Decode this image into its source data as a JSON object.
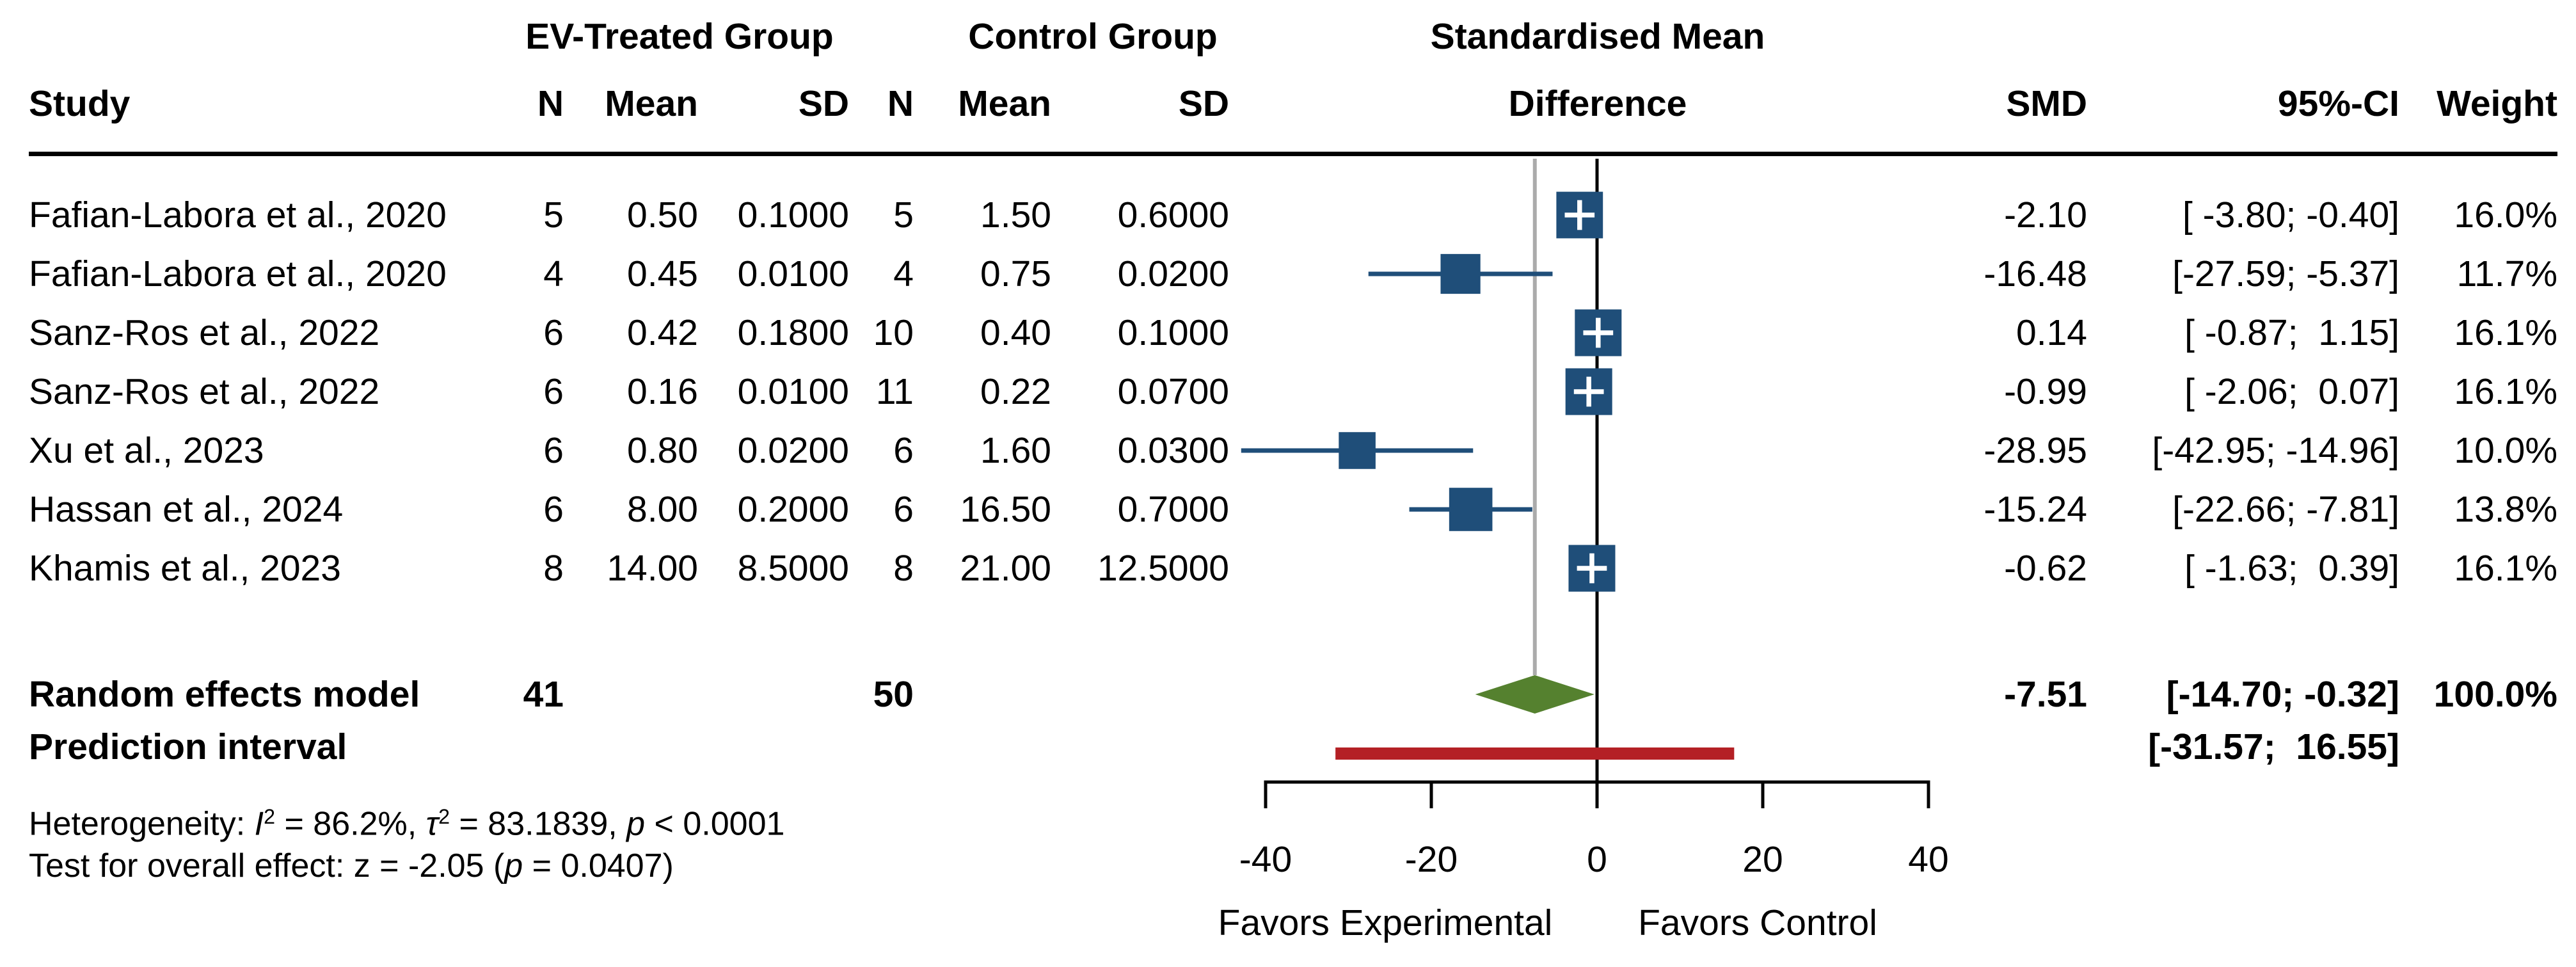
{
  "header": {
    "study": "Study",
    "group1_title": "EV-Treated Group",
    "group2_title": "Control Group",
    "effect_title_line1": "Standardised Mean",
    "effect_title_line2": "Difference",
    "n1": "N",
    "mean1": "Mean",
    "sd1": "SD",
    "n2": "N",
    "mean2": "Mean",
    "sd2": "SD",
    "smd": "SMD",
    "ci": "95%-CI",
    "weight": "Weight"
  },
  "chart_data": {
    "type": "forest",
    "x_axis": {
      "xlim": [
        -40,
        40
      ],
      "ticks": [
        -40,
        -20,
        0,
        20,
        40
      ],
      "tick_labels": [
        "-40",
        "-20",
        "0",
        "20",
        "40"
      ],
      "label_left": "Favors Experimental",
      "label_right": "Favors Control"
    },
    "studies": [
      {
        "name": "Fafian-Labora et al., 2020",
        "n_treated": "5",
        "mean_treated": "0.50",
        "sd_treated": "0.1000",
        "n_control": "5",
        "mean_control": "1.50",
        "sd_control": "0.6000",
        "smd": -2.1,
        "smd_text": "-2.10",
        "ci_low": -3.8,
        "ci_high": -0.4,
        "ci_text": "[ -3.80; -0.40]",
        "weight_pct": 16.0,
        "weight_text": "16.0%"
      },
      {
        "name": "Fafian-Labora et al., 2020",
        "n_treated": "4",
        "mean_treated": "0.45",
        "sd_treated": "0.0100",
        "n_control": "4",
        "mean_control": "0.75",
        "sd_control": "0.0200",
        "smd": -16.48,
        "smd_text": "-16.48",
        "ci_low": -27.59,
        "ci_high": -5.37,
        "ci_text": "[-27.59; -5.37]",
        "weight_pct": 11.7,
        "weight_text": "11.7%"
      },
      {
        "name": "Sanz-Ros et al., 2022",
        "n_treated": "6",
        "mean_treated": "0.42",
        "sd_treated": "0.1800",
        "n_control": "10",
        "mean_control": "0.40",
        "sd_control": "0.1000",
        "smd": 0.14,
        "smd_text": "0.14",
        "ci_low": -0.87,
        "ci_high": 1.15,
        "ci_text": "[ -0.87;  1.15]",
        "weight_pct": 16.1,
        "weight_text": "16.1%"
      },
      {
        "name": "Sanz-Ros et al., 2022",
        "n_treated": "6",
        "mean_treated": "0.16",
        "sd_treated": "0.0100",
        "n_control": "11",
        "mean_control": "0.22",
        "sd_control": "0.0700",
        "smd": -0.99,
        "smd_text": "-0.99",
        "ci_low": -2.06,
        "ci_high": 0.07,
        "ci_text": "[ -2.06;  0.07]",
        "weight_pct": 16.1,
        "weight_text": "16.1%"
      },
      {
        "name": "Xu et al., 2023",
        "n_treated": "6",
        "mean_treated": "0.80",
        "sd_treated": "0.0200",
        "n_control": "6",
        "mean_control": "1.60",
        "sd_control": "0.0300",
        "smd": -28.95,
        "smd_text": "-28.95",
        "ci_low": -42.95,
        "ci_high": -14.96,
        "ci_text": "[-42.95; -14.96]",
        "weight_pct": 10.0,
        "weight_text": "10.0%"
      },
      {
        "name": "Hassan et al., 2024",
        "n_treated": "6",
        "mean_treated": "8.00",
        "sd_treated": "0.2000",
        "n_control": "6",
        "mean_control": "16.50",
        "sd_control": "0.7000",
        "smd": -15.24,
        "smd_text": "-15.24",
        "ci_low": -22.66,
        "ci_high": -7.81,
        "ci_text": "[-22.66; -7.81]",
        "weight_pct": 13.8,
        "weight_text": "13.8%"
      },
      {
        "name": "Khamis et al., 2023",
        "n_treated": "8",
        "mean_treated": "14.00",
        "sd_treated": "8.5000",
        "n_control": "8",
        "mean_control": "21.00",
        "sd_control": "12.5000",
        "smd": -0.62,
        "smd_text": "-0.62",
        "ci_low": -1.63,
        "ci_high": 0.39,
        "ci_text": "[ -1.63;  0.39]",
        "weight_pct": 16.1,
        "weight_text": "16.1%"
      }
    ],
    "summary": {
      "label": "Random effects model",
      "n_treated": "41",
      "n_control": "50",
      "smd": -7.51,
      "smd_text": "-7.51",
      "ci_low": -14.7,
      "ci_high": -0.32,
      "ci_text": "[-14.70; -0.32]",
      "weight_text": "100.0%"
    },
    "prediction": {
      "label": "Prediction interval",
      "low": -31.57,
      "high": 16.55,
      "ci_text": "[-31.57;  16.55]"
    },
    "colors": {
      "square": "#1F4E79",
      "ci_line": "#1F4E79",
      "diamond": "#55812F",
      "prediction_bar": "#B42025",
      "zero_line": "#000000",
      "pooled_line": "#ABABAB",
      "axis": "#000000"
    }
  },
  "footnotes": [
    {
      "segments": [
        {
          "text": "Heterogeneity: ",
          "style": "normal"
        },
        {
          "text": "I",
          "style": "italic"
        },
        {
          "text": "2",
          "style": "sup"
        },
        {
          "text": " = 86.2%, ",
          "style": "normal"
        },
        {
          "text": "τ",
          "style": "italic"
        },
        {
          "text": "2",
          "style": "sup"
        },
        {
          "text": " = 83.1839, ",
          "style": "normal"
        },
        {
          "text": "p",
          "style": "italic"
        },
        {
          "text": " < 0.0001",
          "style": "normal"
        }
      ]
    },
    {
      "segments": [
        {
          "text": "Test for overall effect: z = -2.05 (",
          "style": "normal"
        },
        {
          "text": "p",
          "style": "italic"
        },
        {
          "text": " = 0.0407)",
          "style": "normal"
        }
      ]
    }
  ]
}
